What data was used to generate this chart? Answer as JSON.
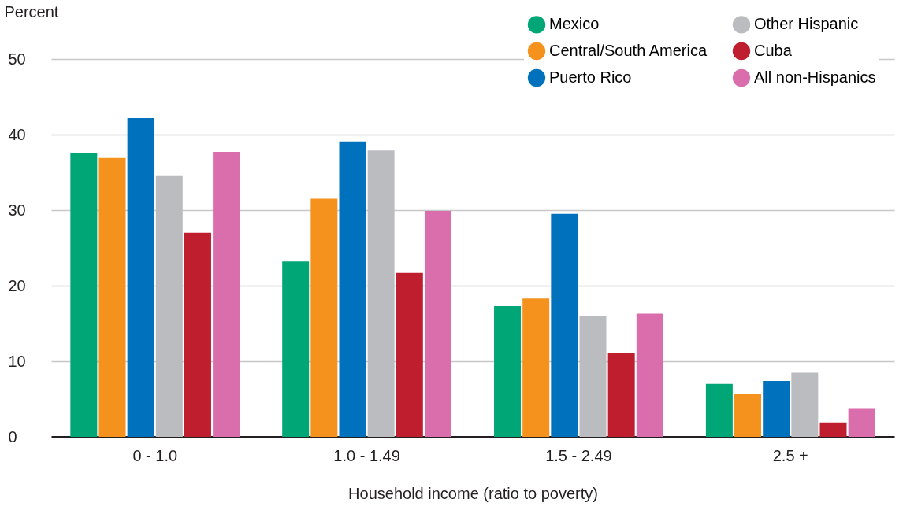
{
  "chart_data": {
    "type": "bar",
    "xlabel": "Household income (ratio to poverty)",
    "ylabel": "Percent",
    "categories": [
      "0 - 1.0",
      "1.0 - 1.49",
      "1.5 - 2.49",
      "2.5 +"
    ],
    "series": [
      {
        "name": "Mexico",
        "color": "#00a676",
        "values": [
          37.5,
          23.2,
          17.3,
          7.0
        ]
      },
      {
        "name": "Central/South America",
        "color": "#f5921e",
        "values": [
          36.9,
          31.5,
          18.3,
          5.7
        ]
      },
      {
        "name": "Puerto Rico",
        "color": "#0071bc",
        "values": [
          42.2,
          39.1,
          29.5,
          7.4
        ]
      },
      {
        "name": "Other Hispanic",
        "color": "#bbbcc0",
        "values": [
          34.6,
          37.9,
          16.0,
          8.5
        ]
      },
      {
        "name": "Cuba",
        "color": "#be1e2d",
        "values": [
          27.0,
          21.7,
          11.1,
          1.9
        ]
      },
      {
        "name": "All non-Hispanics",
        "color": "#da6dab",
        "values": [
          37.7,
          29.9,
          16.3,
          3.7
        ]
      }
    ],
    "ylim": [
      0,
      50
    ],
    "yticks": [
      0,
      10,
      20,
      30,
      40,
      50
    ],
    "grid": "y",
    "legend": "top right"
  }
}
